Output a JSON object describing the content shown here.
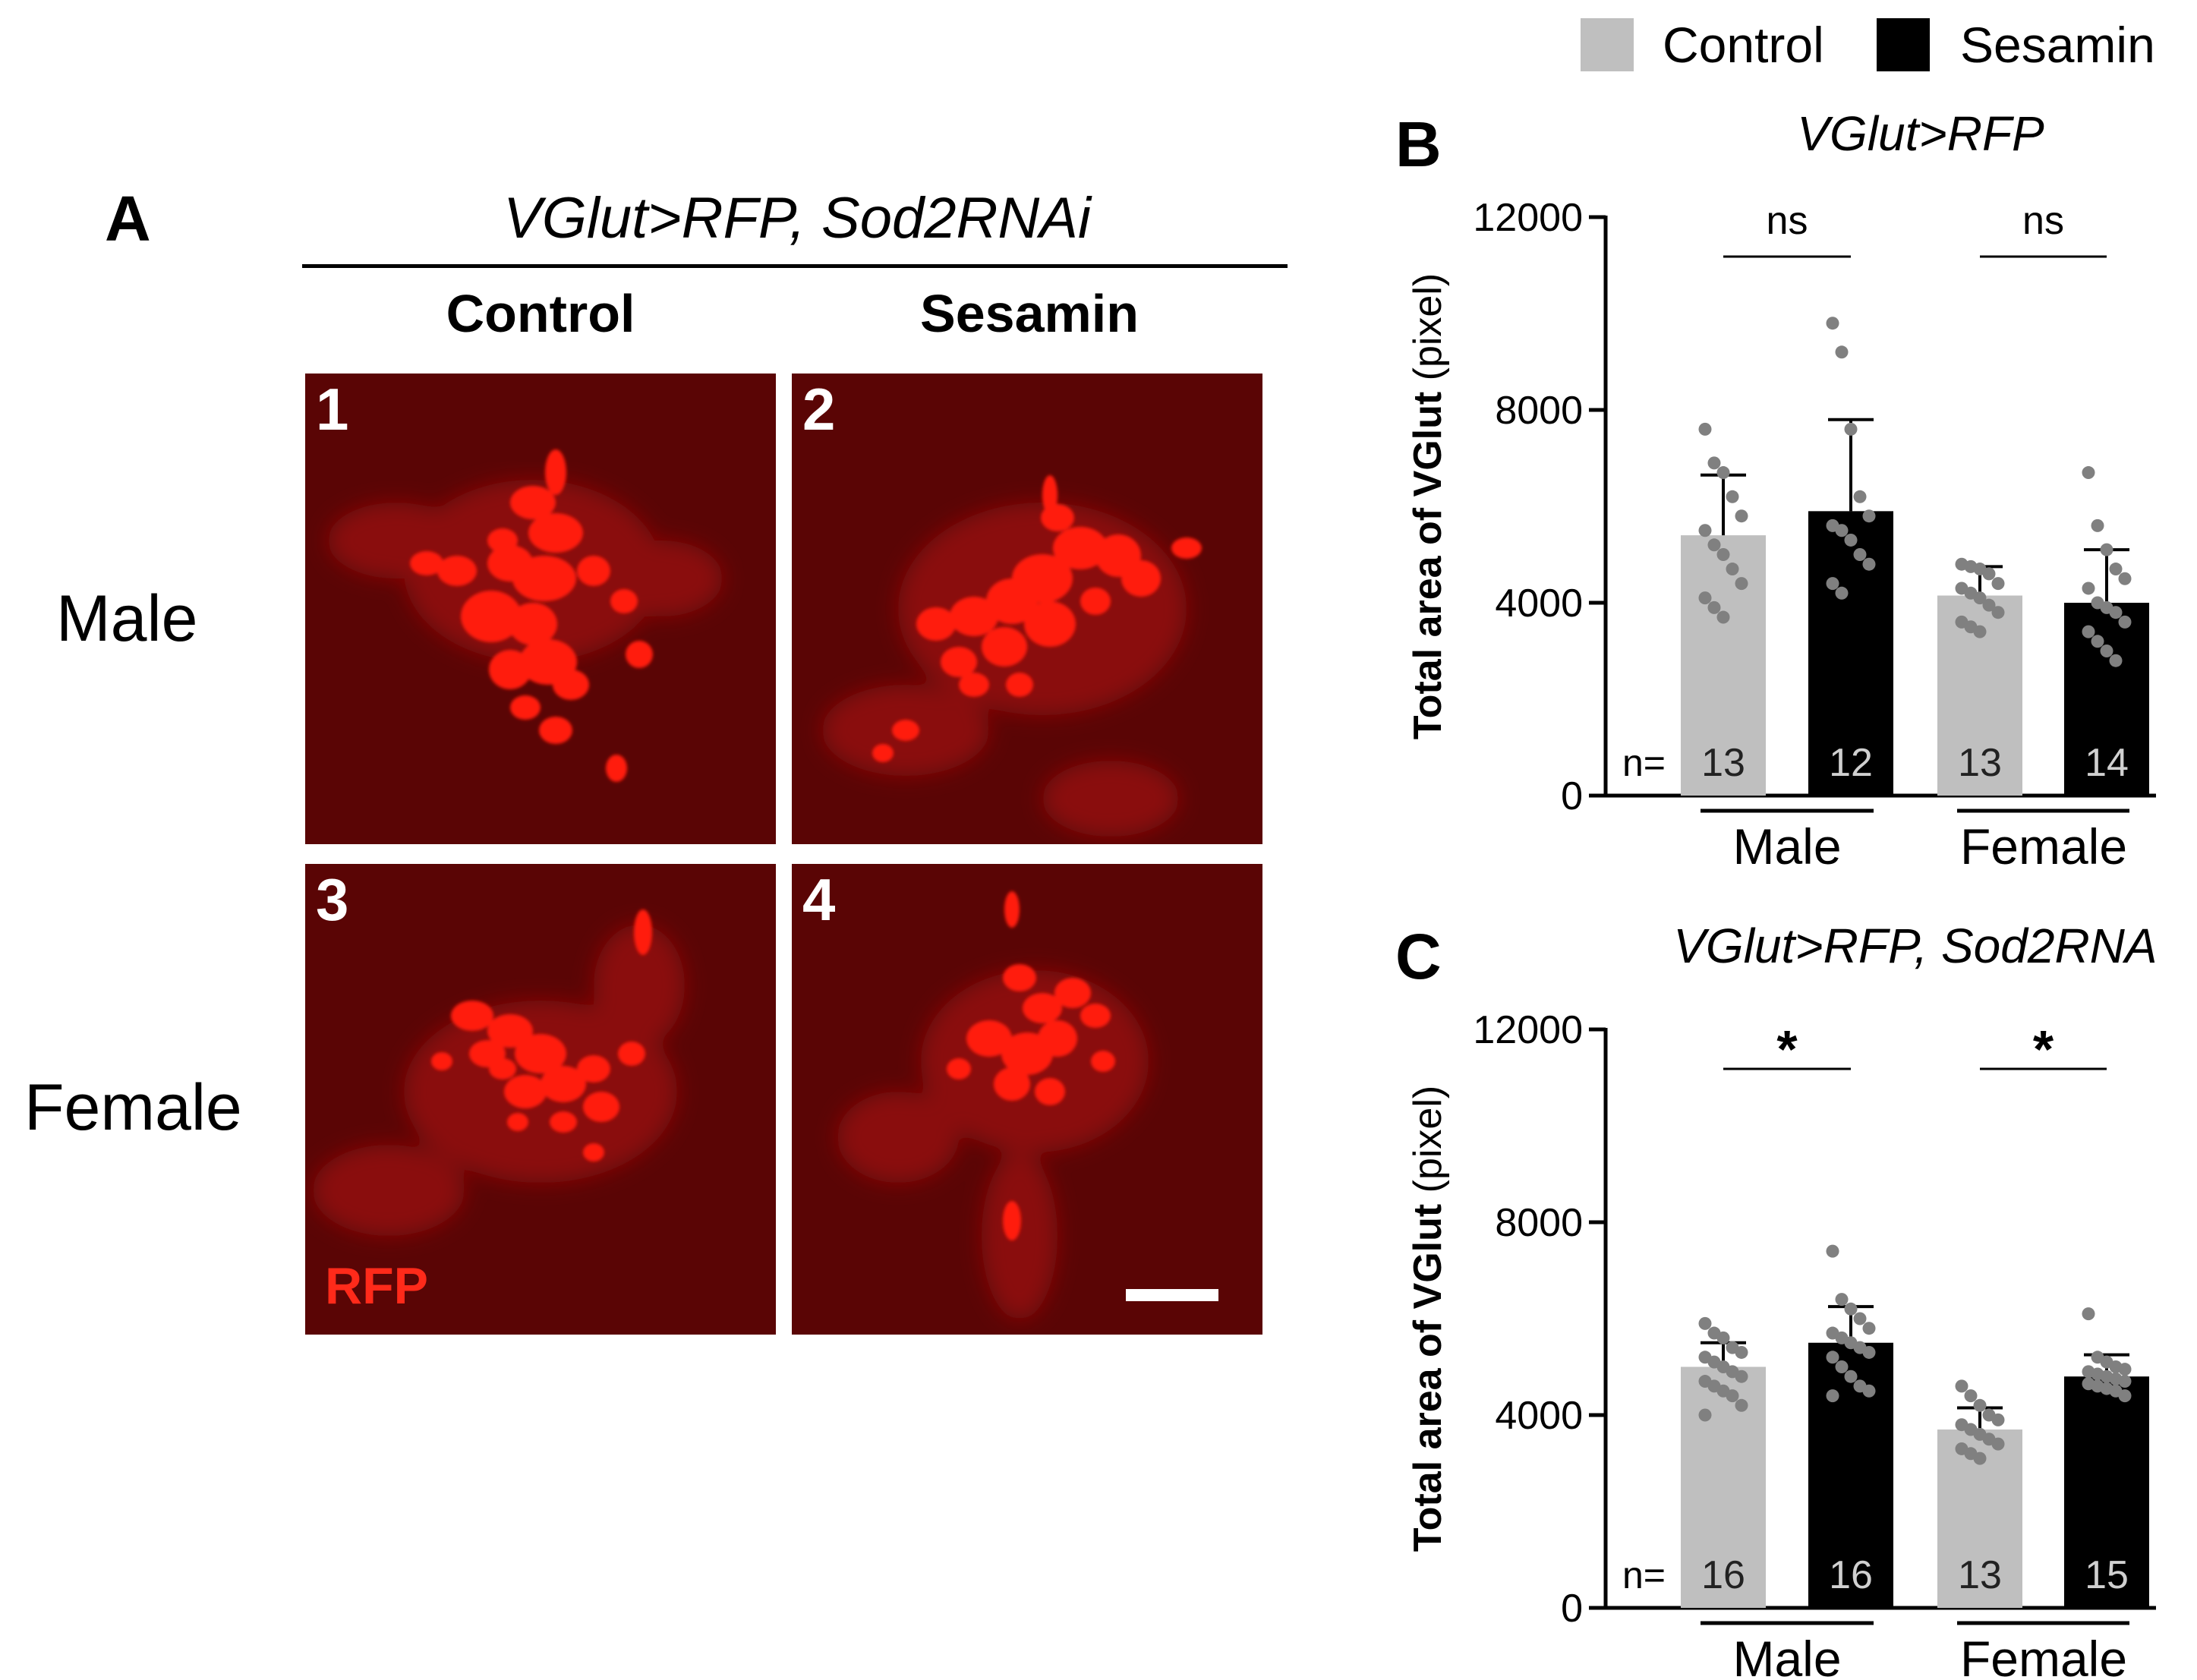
{
  "legend": [
    {
      "label": "Control",
      "color": "#bfbfbf"
    },
    {
      "label": "Sesamin",
      "color": "#000000"
    }
  ],
  "panel_a": {
    "letter": "A",
    "genotype": "VGlut>RFP, Sod2RNAi",
    "columns": [
      "Control",
      "Sesamin"
    ],
    "rows": [
      "Male",
      "Female"
    ],
    "image_numbers": [
      "1",
      "2",
      "3",
      "4"
    ],
    "stain_label": "RFP",
    "stain_color": "#ff2a1a",
    "background_color": "#5a0505"
  },
  "chart_data": [
    {
      "panel": "B",
      "type": "bar",
      "title": "VGlut>RFP",
      "ylabel": "Total area of VGlut (pixel)",
      "ylabel_bold": "Total area of VGlut",
      "ylabel_unit": "(pixel)",
      "ylim": [
        0,
        12000
      ],
      "yticks": [
        0,
        4000,
        8000,
        12000
      ],
      "groups": [
        "Male",
        "Female"
      ],
      "series": [
        {
          "name": "Control",
          "color": "#bfbfbf",
          "values": [
            5400,
            4150
          ],
          "sd": [
            1250,
            600
          ],
          "n": [
            "13",
            "13"
          ],
          "points": [
            [
              7600,
              6900,
              6700,
              6200,
              5800,
              5500,
              5200,
              5000,
              4700,
              4400,
              4100,
              3900,
              3700
            ],
            [
              4800,
              4750,
              4700,
              4600,
              4400,
              4300,
              4200,
              4100,
              3950,
              3800,
              3600,
              3500,
              3400
            ]
          ]
        },
        {
          "name": "Sesamin",
          "color": "#000000",
          "values": [
            5900,
            4000
          ],
          "sd": [
            1900,
            1100
          ],
          "n": [
            "12",
            "14"
          ],
          "points": [
            [
              9800,
              9200,
              7600,
              6200,
              5800,
              5600,
              5500,
              5300,
              5000,
              4800,
              4400,
              4200
            ],
            [
              6700,
              5600,
              5100,
              4700,
              4500,
              4300,
              4000,
              3900,
              3800,
              3600,
              3400,
              3200,
              3000,
              2800
            ]
          ]
        }
      ],
      "significance": [
        "ns",
        "ns"
      ],
      "n_prefix": "n="
    },
    {
      "panel": "C",
      "type": "bar",
      "title": "VGlut>RFP, Sod2RNAi",
      "ylabel": "Total area of VGlut (pixel)",
      "ylabel_bold": "Total area of VGlut",
      "ylabel_unit": "(pixel)",
      "ylim": [
        0,
        12000
      ],
      "yticks": [
        0,
        4000,
        8000,
        12000
      ],
      "groups": [
        "Male",
        "Female"
      ],
      "series": [
        {
          "name": "Control",
          "color": "#bfbfbf",
          "values": [
            5000,
            3700
          ],
          "sd": [
            500,
            450
          ],
          "n": [
            "16",
            "13"
          ],
          "points": [
            [
              5900,
              5700,
              5600,
              5400,
              5300,
              5200,
              5100,
              5000,
              4900,
              4800,
              4700,
              4600,
              4500,
              4400,
              4200,
              4000
            ],
            [
              4600,
              4400,
              4200,
              4000,
              3900,
              3800,
              3700,
              3600,
              3500,
              3400,
              3300,
              3200,
              3100
            ]
          ]
        },
        {
          "name": "Sesamin",
          "color": "#000000",
          "values": [
            5500,
            4800
          ],
          "sd": [
            750,
            450
          ],
          "n": [
            "16",
            "15"
          ],
          "points": [
            [
              7400,
              6400,
              6200,
              6000,
              5800,
              5700,
              5600,
              5500,
              5400,
              5300,
              5200,
              5000,
              4800,
              4600,
              4500,
              4400
            ],
            [
              6100,
              5200,
              5100,
              5000,
              4950,
              4900,
              4850,
              4800,
              4750,
              4700,
              4650,
              4600,
              4550,
              4500,
              4400
            ]
          ]
        }
      ],
      "significance": [
        "*",
        "*"
      ],
      "n_prefix": "n="
    }
  ]
}
